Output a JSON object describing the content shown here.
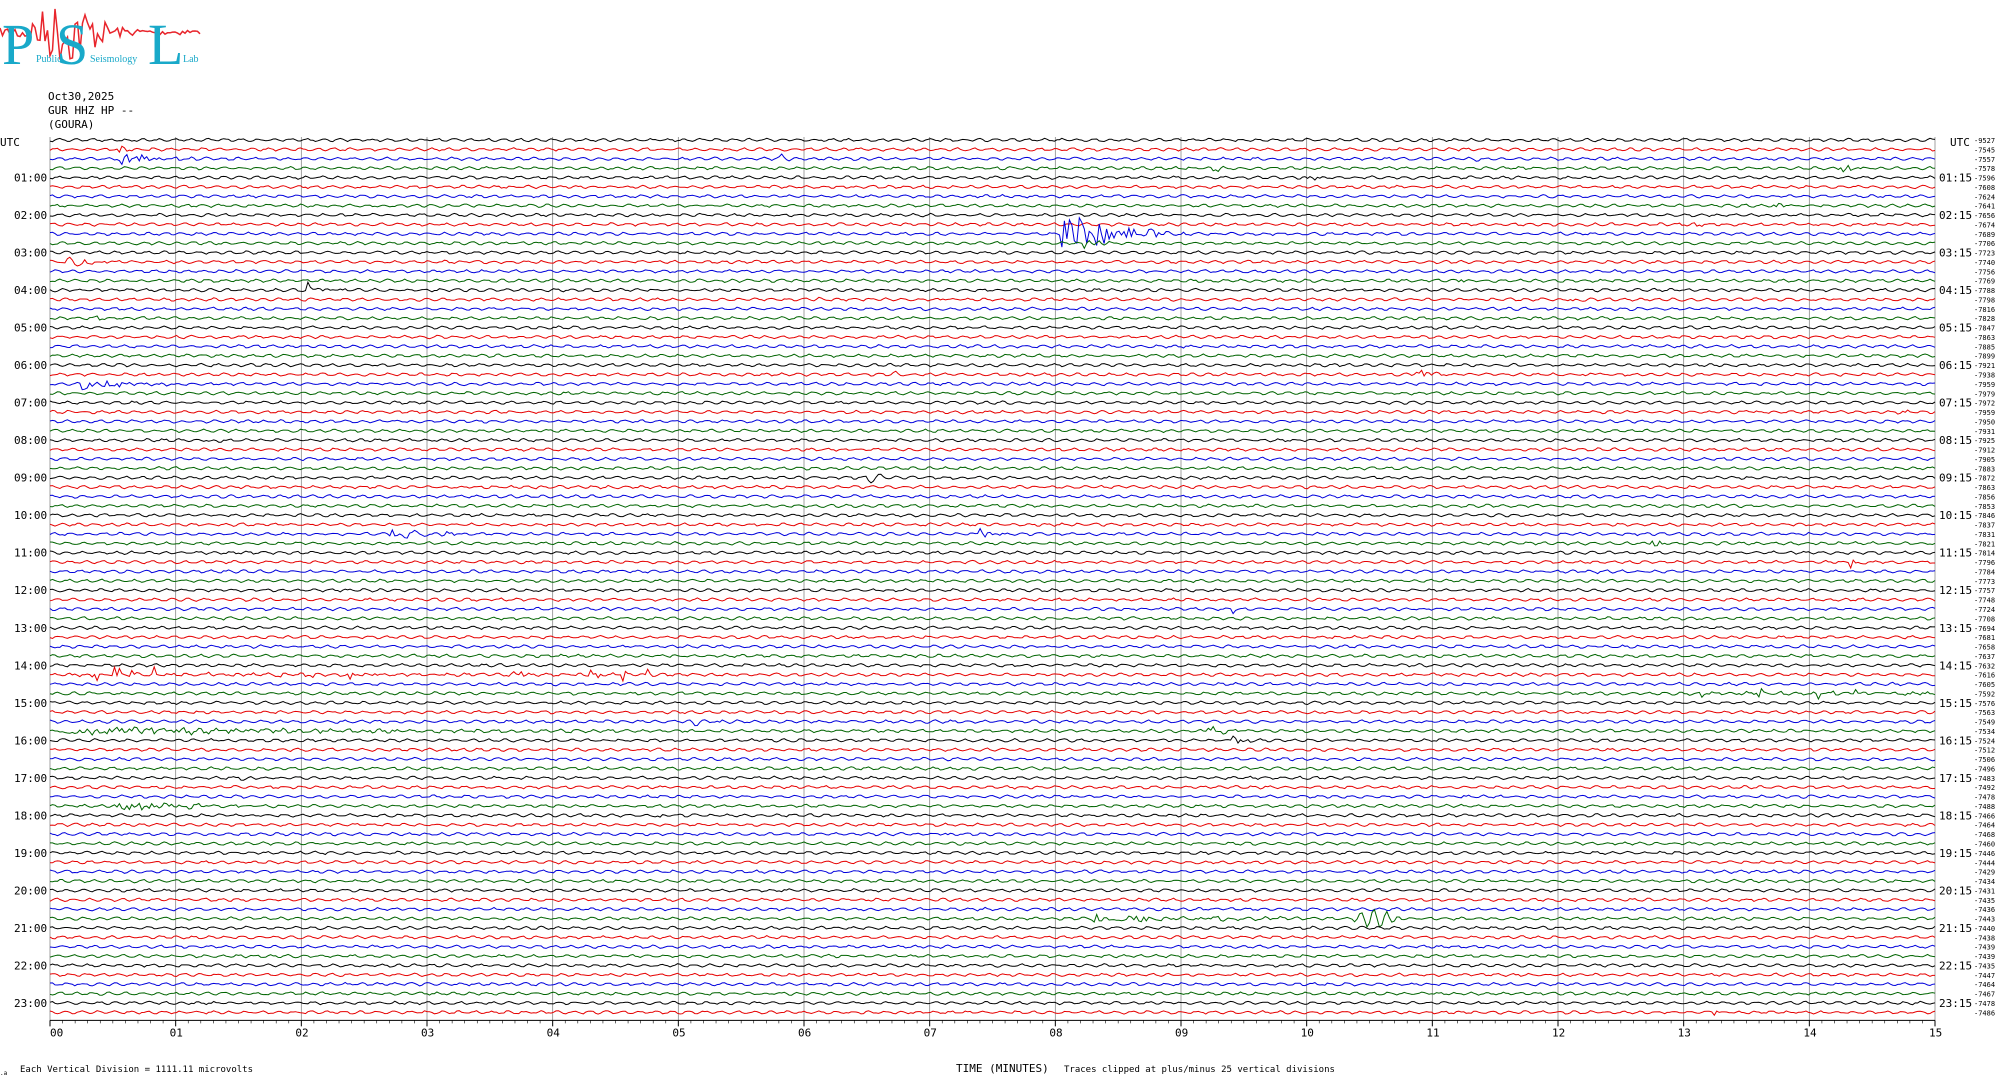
{
  "logo": {
    "letters": [
      "P",
      "S",
      "L"
    ],
    "words": [
      "Public",
      "Seismology",
      "Lab"
    ],
    "colors": {
      "letters": "#19a9c9",
      "trace": "#e8252c"
    }
  },
  "header": {
    "date": "Oct30,2025",
    "station": "GUR HHZ HP --",
    "location": "(GOURA)"
  },
  "chart_data": {
    "type": "line",
    "title": "",
    "xlabel": "TIME (MINUTES)",
    "ylabel": "",
    "xlim": [
      0,
      15
    ],
    "x_ticks": [
      "00",
      "01",
      "02",
      "03",
      "04",
      "05",
      "06",
      "07",
      "08",
      "09",
      "10",
      "11",
      "12",
      "13",
      "14",
      "15"
    ],
    "grid": true,
    "left_axis_title": "UTC",
    "right_axis_title": "UTC",
    "left_hour_labels": [
      "01:00",
      "02:00",
      "03:00",
      "04:00",
      "05:00",
      "06:00",
      "07:00",
      "08:00",
      "09:00",
      "10:00",
      "11:00",
      "12:00",
      "13:00",
      "14:00",
      "15:00",
      "16:00",
      "17:00",
      "18:00",
      "19:00",
      "20:00",
      "21:00",
      "22:00",
      "23:00"
    ],
    "right_hour_labels": [
      "01:15",
      "02:15",
      "03:15",
      "04:15",
      "05:15",
      "06:15",
      "07:15",
      "08:15",
      "09:15",
      "10:15",
      "11:15",
      "12:15",
      "13:15",
      "14:15",
      "15:15",
      "16:15",
      "17:15",
      "18:15",
      "19:15",
      "20:15",
      "21:15",
      "22:15",
      "23:15"
    ],
    "trace_minutes": 15,
    "trace_colors": [
      "#000000",
      "#e60000",
      "#0000dc",
      "#006400"
    ],
    "right_offsets": [
      -9527,
      -7545,
      -7557,
      -7578,
      -7596,
      -7608,
      -7624,
      -7641,
      -7656,
      -7674,
      -7689,
      -7706,
      -7723,
      -7740,
      -7756,
      -7769,
      -7788,
      -7798,
      -7816,
      -7828,
      -7847,
      -7863,
      -7885,
      -7899,
      -7921,
      -7938,
      -7959,
      -7979,
      -7972,
      -7959,
      -7950,
      -7931,
      -7925,
      -7912,
      -7905,
      -7883,
      -7872,
      -7863,
      -7856,
      -7853,
      -7846,
      -7837,
      -7831,
      -7821,
      -7814,
      -7796,
      -7784,
      -7773,
      -7757,
      -7748,
      -7724,
      -7708,
      -7694,
      -7681,
      -7658,
      -7637,
      -7632,
      -7616,
      -7605,
      -7592,
      -7576,
      -7563,
      -7549,
      -7534,
      -7524,
      -7512,
      -7506,
      -7496,
      -7483,
      -7492,
      -7478,
      -7488,
      -7466,
      -7464,
      -7468,
      -7460,
      -7446,
      -7444,
      -7429,
      -7434,
      -7431,
      -7435,
      -7436,
      -7443,
      -7440,
      -7438,
      -7439,
      -7439,
      -7435,
      -7447,
      -7464,
      -7467,
      -7478,
      -7486
    ],
    "events": [
      {
        "trace": 1,
        "minute": 0.55,
        "amp": 4,
        "dur": 0.25
      },
      {
        "trace": 2,
        "minute": 0.55,
        "amp": 9,
        "dur": 0.6
      },
      {
        "trace": 2,
        "minute": 5.8,
        "amp": 5,
        "dur": 0.15
      },
      {
        "trace": 2,
        "minute": 11.3,
        "amp": 3,
        "dur": 0.2
      },
      {
        "trace": 3,
        "minute": 9.25,
        "amp": 4,
        "dur": 0.2
      },
      {
        "trace": 3,
        "minute": 14.25,
        "amp": 6,
        "dur": 0.25
      },
      {
        "trace": 4,
        "minute": 10.0,
        "amp": 3,
        "dur": 0.2
      },
      {
        "trace": 7,
        "minute": 13.7,
        "amp": 5,
        "dur": 0.2
      },
      {
        "trace": 9,
        "minute": 13.1,
        "amp": 4,
        "dur": 0.15
      },
      {
        "trace": 10,
        "minute": 8.05,
        "amp": 26,
        "dur": 1.0
      },
      {
        "trace": 11,
        "minute": 8.2,
        "amp": 8,
        "dur": 0.3
      },
      {
        "trace": 13,
        "minute": 0.1,
        "amp": 7,
        "dur": 0.55
      },
      {
        "trace": 15,
        "minute": 11.2,
        "amp": 3,
        "dur": 0.15
      },
      {
        "trace": 16,
        "minute": 2.05,
        "amp": 7,
        "dur": 0.3
      },
      {
        "trace": 17,
        "minute": 6.1,
        "amp": 2,
        "dur": 0.15
      },
      {
        "trace": 17,
        "minute": 7.1,
        "amp": 2,
        "dur": 0.15
      },
      {
        "trace": 17,
        "minute": 12.1,
        "amp": 3,
        "dur": 0.15
      },
      {
        "trace": 19,
        "minute": 0.35,
        "amp": 4,
        "dur": 0.15
      },
      {
        "trace": 25,
        "minute": 6.7,
        "amp": 3,
        "dur": 0.2
      },
      {
        "trace": 25,
        "minute": 10.85,
        "amp": 8,
        "dur": 0.3
      },
      {
        "trace": 25,
        "minute": 12.2,
        "amp": 7,
        "dur": 0.2
      },
      {
        "trace": 26,
        "minute": 0.25,
        "amp": 8,
        "dur": 0.8
      },
      {
        "trace": 29,
        "minute": 13.5,
        "amp": 3,
        "dur": 0.15
      },
      {
        "trace": 29,
        "minute": 14.7,
        "amp": 3,
        "dur": 0.2
      },
      {
        "trace": 32,
        "minute": 1.25,
        "amp": 4,
        "dur": 0.2
      },
      {
        "trace": 36,
        "minute": 6.5,
        "amp": 7,
        "dur": 0.25
      },
      {
        "trace": 42,
        "minute": 2.7,
        "amp": 6,
        "dur": 0.9
      },
      {
        "trace": 42,
        "minute": 7.4,
        "amp": 7,
        "dur": 0.2
      },
      {
        "trace": 43,
        "minute": 12.75,
        "amp": 5,
        "dur": 0.2
      },
      {
        "trace": 45,
        "minute": 14.3,
        "amp": 6,
        "dur": 0.25
      },
      {
        "trace": 46,
        "minute": 12.3,
        "amp": 4,
        "dur": 0.15
      },
      {
        "trace": 50,
        "minute": 9.4,
        "amp": 4,
        "dur": 0.2
      },
      {
        "trace": 57,
        "minute": 0.05,
        "amp": 8,
        "dur": 2.6,
        "spiky": true
      },
      {
        "trace": 57,
        "minute": 3.0,
        "amp": 6,
        "dur": 1.8,
        "spiky": true
      },
      {
        "trace": 59,
        "minute": 13.0,
        "amp": 6,
        "dur": 2.0,
        "spiky": true
      },
      {
        "trace": 62,
        "minute": 5.1,
        "amp": 4,
        "dur": 0.5
      },
      {
        "trace": 63,
        "minute": 0.1,
        "amp": 4,
        "dur": 5.5
      },
      {
        "trace": 63,
        "minute": 9.2,
        "amp": 6,
        "dur": 0.4
      },
      {
        "trace": 64,
        "minute": 9.4,
        "amp": 8,
        "dur": 0.25
      },
      {
        "trace": 68,
        "minute": 1.5,
        "amp": 4,
        "dur": 0.2
      },
      {
        "trace": 71,
        "minute": 0.5,
        "amp": 7,
        "dur": 1.3
      },
      {
        "trace": 72,
        "minute": 4.8,
        "amp": 4,
        "dur": 0.25
      },
      {
        "trace": 74,
        "minute": 7.1,
        "amp": 4,
        "dur": 0.2
      },
      {
        "trace": 83,
        "minute": 8.3,
        "amp": 4,
        "dur": 2.2
      },
      {
        "trace": 83,
        "minute": 10.35,
        "amp": 10,
        "dur": 0.4,
        "slow": true
      },
      {
        "trace": 93,
        "minute": 13.2,
        "amp": 5,
        "dur": 0.2
      }
    ]
  },
  "footer": {
    "scale_note": "Each Vertical Division = 1111.11 microvolts",
    "clip_note": "Traces clipped at plus/minus 25 vertical divisions",
    "corner_mark": ".a"
  }
}
